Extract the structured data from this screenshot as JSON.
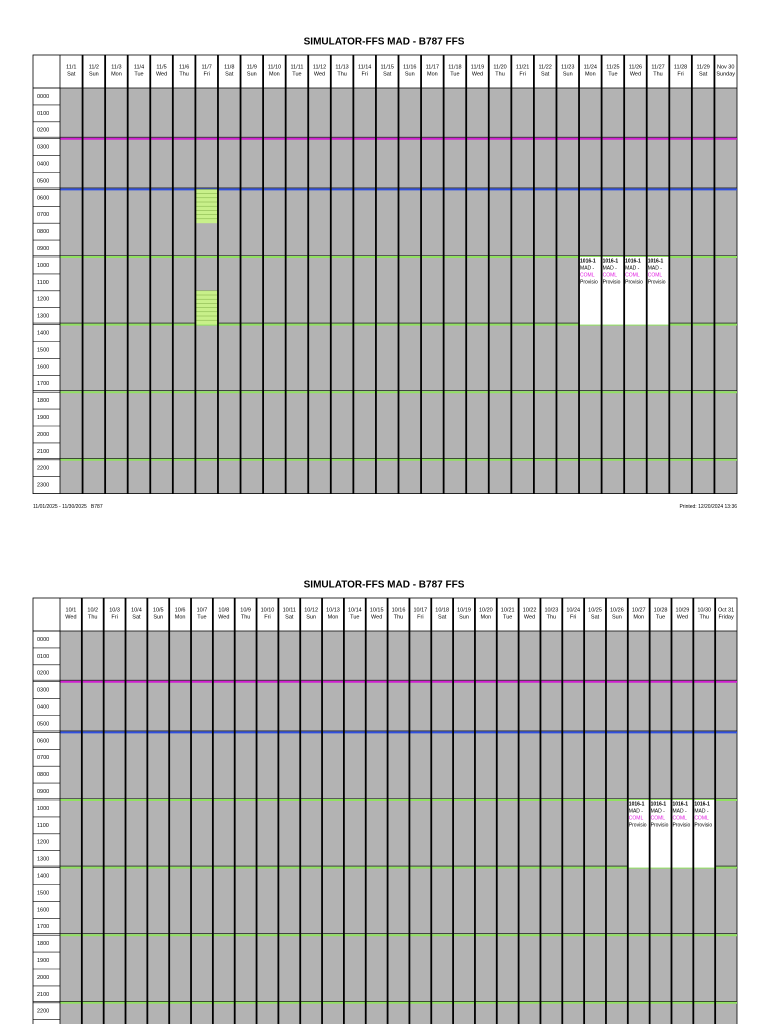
{
  "hours": [
    "0000",
    "0100",
    "0200",
    "0300",
    "0400",
    "0500",
    "0600",
    "0700",
    "0800",
    "0900",
    "1000",
    "1100",
    "1200",
    "1300",
    "1400",
    "1500",
    "1600",
    "1700",
    "1800",
    "1900",
    "2000",
    "2100",
    "2200",
    "2300"
  ],
  "pages": [
    {
      "title": "SIMULATOR-FFS MAD - B787 FFS",
      "days": [
        [
          "11/1",
          "Sat"
        ],
        [
          "11/2",
          "Sun"
        ],
        [
          "11/3",
          "Mon"
        ],
        [
          "11/4",
          "Tue"
        ],
        [
          "11/5",
          "Wed"
        ],
        [
          "11/6",
          "Thu"
        ],
        [
          "11/7",
          "Fri"
        ],
        [
          "11/8",
          "Sat"
        ],
        [
          "11/9",
          "Sun"
        ],
        [
          "11/10",
          "Mon"
        ],
        [
          "11/11",
          "Tue"
        ],
        [
          "11/12",
          "Wed"
        ],
        [
          "11/13",
          "Thu"
        ],
        [
          "11/14",
          "Fri"
        ],
        [
          "11/15",
          "Sat"
        ],
        [
          "11/16",
          "Sun"
        ],
        [
          "11/17",
          "Mon"
        ],
        [
          "11/18",
          "Tue"
        ],
        [
          "11/19",
          "Wed"
        ],
        [
          "11/20",
          "Thu"
        ],
        [
          "11/21",
          "Fri"
        ],
        [
          "11/22",
          "Sat"
        ],
        [
          "11/23",
          "Sun"
        ],
        [
          "11/24",
          "Mon"
        ],
        [
          "11/25",
          "Tue"
        ],
        [
          "11/26",
          "Wed"
        ],
        [
          "11/27",
          "Thu"
        ],
        [
          "11/28",
          "Fri"
        ],
        [
          "11/29",
          "Sat"
        ],
        [
          "Nov 30",
          "Sunday"
        ]
      ],
      "events": [
        {
          "day": "11/24",
          "lines": [
            "1016-1",
            "MAD -",
            "COML",
            "Provisio"
          ]
        },
        {
          "day": "11/25",
          "lines": [
            "1016-1",
            "MAD -",
            "COML",
            "Provisio"
          ]
        },
        {
          "day": "11/26",
          "lines": [
            "1016-1",
            "MAD -",
            "COML",
            "Provisio"
          ]
        },
        {
          "day": "11/27",
          "lines": [
            "1016-1",
            "MAD -",
            "COML",
            "Provisio"
          ]
        }
      ],
      "footer_left": "11/01/2025 - 11/30/2025   B787",
      "footer_right": "Printed: 12/20/2024 13:36"
    },
    {
      "title": "SIMULATOR-FFS MAD - B787 FFS",
      "days": [
        [
          "10/1",
          "Wed"
        ],
        [
          "10/2",
          "Thu"
        ],
        [
          "10/3",
          "Fri"
        ],
        [
          "10/4",
          "Sat"
        ],
        [
          "10/5",
          "Sun"
        ],
        [
          "10/6",
          "Mon"
        ],
        [
          "10/7",
          "Tue"
        ],
        [
          "10/8",
          "Wed"
        ],
        [
          "10/9",
          "Thu"
        ],
        [
          "10/10",
          "Fri"
        ],
        [
          "10/11",
          "Sat"
        ],
        [
          "10/12",
          "Sun"
        ],
        [
          "10/13",
          "Mon"
        ],
        [
          "10/14",
          "Tue"
        ],
        [
          "10/15",
          "Wed"
        ],
        [
          "10/16",
          "Thu"
        ],
        [
          "10/17",
          "Fri"
        ],
        [
          "10/18",
          "Sat"
        ],
        [
          "10/19",
          "Sun"
        ],
        [
          "10/20",
          "Mon"
        ],
        [
          "10/21",
          "Tue"
        ],
        [
          "10/22",
          "Wed"
        ],
        [
          "10/23",
          "Thu"
        ],
        [
          "10/24",
          "Fri"
        ],
        [
          "10/25",
          "Sat"
        ],
        [
          "10/26",
          "Sun"
        ],
        [
          "10/27",
          "Mon"
        ],
        [
          "10/28",
          "Tue"
        ],
        [
          "10/29",
          "Wed"
        ],
        [
          "10/30",
          "Thu"
        ],
        [
          "Oct 31",
          "Friday"
        ]
      ],
      "events": [
        {
          "day": "10/27",
          "lines": [
            "1016-1",
            "MAD -",
            "COML",
            "Provisio"
          ]
        },
        {
          "day": "10/28",
          "lines": [
            "1016-1",
            "MAD -",
            "COML",
            "Provisio"
          ]
        },
        {
          "day": "10/29",
          "lines": [
            "1016-1",
            "MAD -",
            "COML",
            "Provisio"
          ]
        },
        {
          "day": "10/30",
          "lines": [
            "1016-1",
            "MAD -",
            "COML",
            "Provisio"
          ]
        }
      ]
    }
  ]
}
